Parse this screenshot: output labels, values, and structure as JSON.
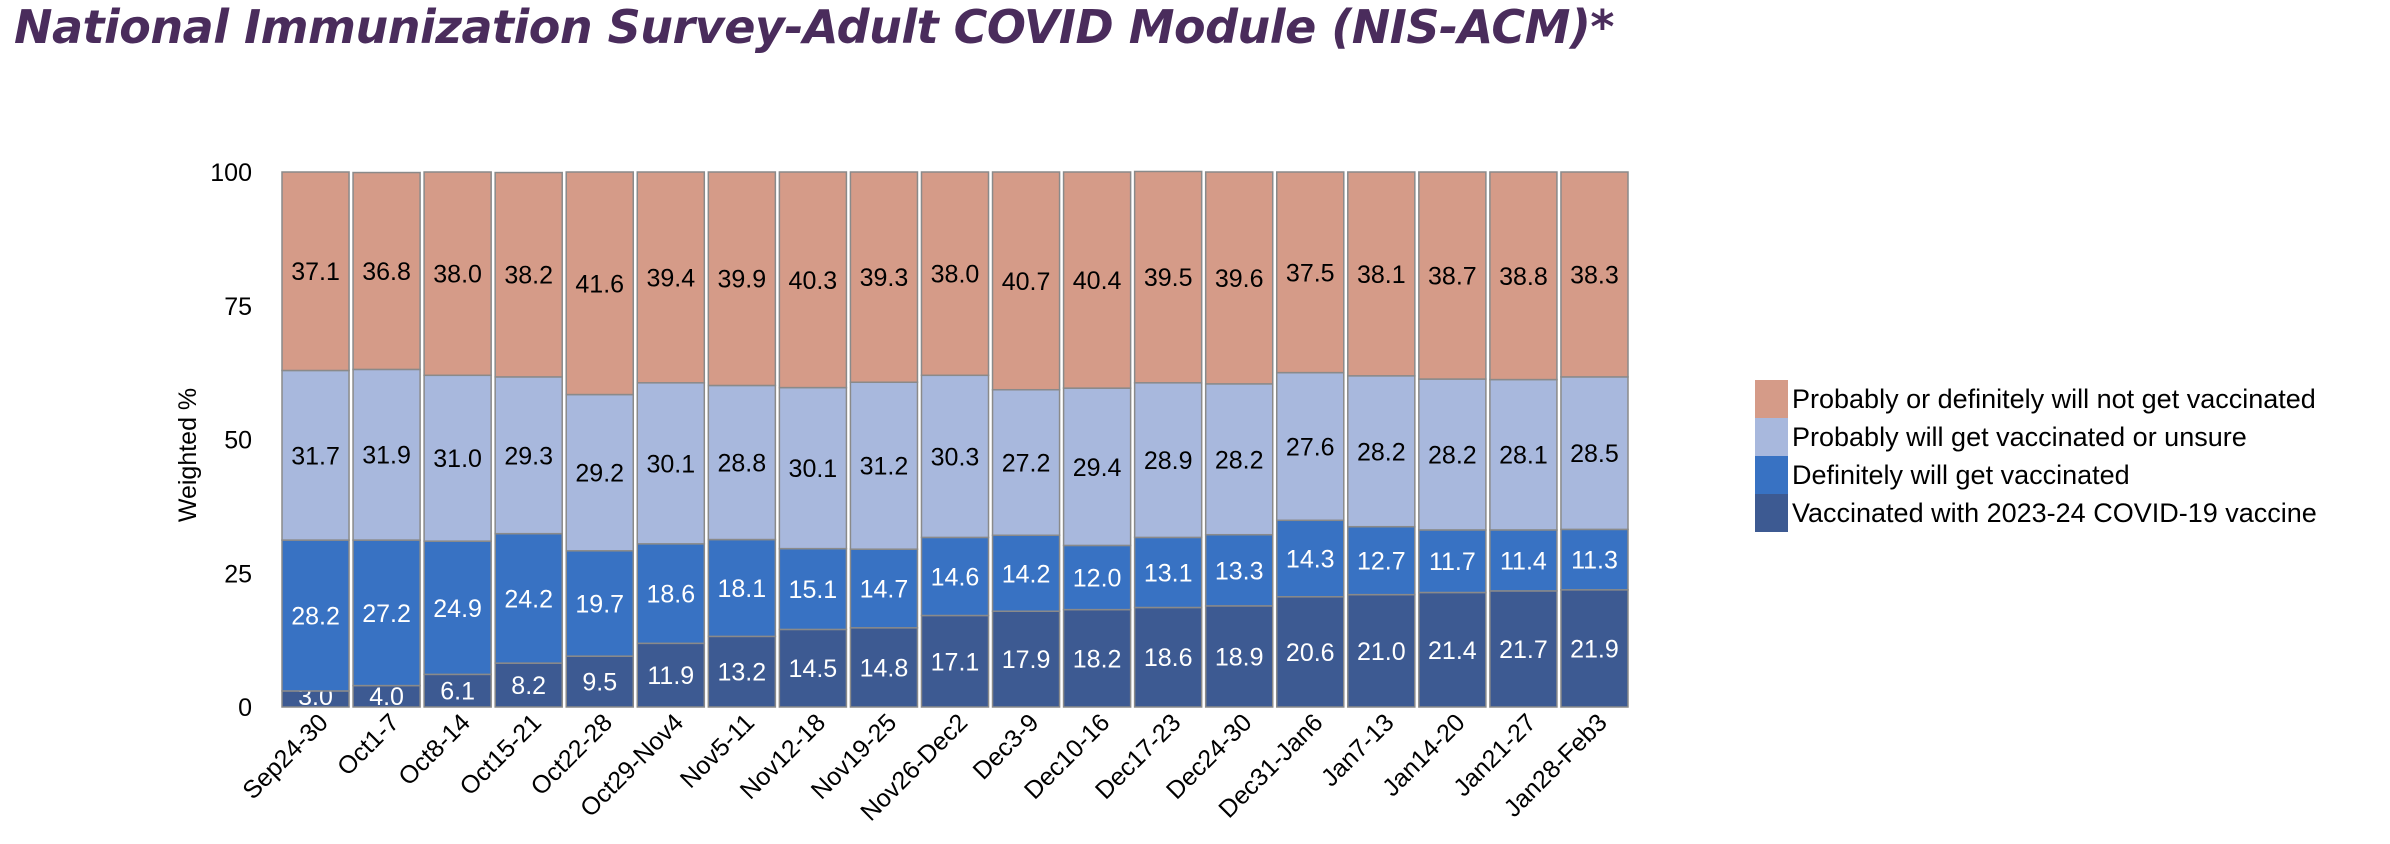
{
  "title": "National Immunization Survey-Adult COVID Module (NIS-ACM)*",
  "colors": {
    "not_vaccinated": "#d59b88",
    "probably_unsure": "#a8b8dd",
    "definitely": "#3872c3",
    "vaccinated": "#3d5a92",
    "bar_border": "#8a8a8a"
  },
  "chart_data": {
    "type": "bar",
    "stacked": true,
    "ylabel": "Weighted %",
    "xlabel": "",
    "ylim": [
      0,
      100
    ],
    "yticks": [
      0,
      25,
      50,
      75,
      100
    ],
    "grid": false,
    "legend_position": "right",
    "categories": [
      "Sep24-30",
      "Oct1-7",
      "Oct8-14",
      "Oct15-21",
      "Oct22-28",
      "Oct29-Nov4",
      "Nov5-11",
      "Nov12-18",
      "Nov19-25",
      "Nov26-Dec2",
      "Dec3-9",
      "Dec10-16",
      "Dec17-23",
      "Dec24-30",
      "Dec31-Jan6",
      "Jan7-13",
      "Jan14-20",
      "Jan21-27",
      "Jan28-Feb3"
    ],
    "series": [
      {
        "name": "Vaccinated with 2023-24 COVID-19 vaccine",
        "color_key": "vaccinated",
        "values": [
          3.0,
          4.0,
          6.1,
          8.2,
          9.5,
          11.9,
          13.2,
          14.5,
          14.8,
          17.1,
          17.9,
          18.2,
          18.6,
          18.9,
          20.6,
          21.0,
          21.4,
          21.7,
          21.9
        ]
      },
      {
        "name": "Definitely will get vaccinated",
        "color_key": "definitely",
        "values": [
          28.2,
          27.2,
          24.9,
          24.2,
          19.7,
          18.6,
          18.1,
          15.1,
          14.7,
          14.6,
          14.2,
          12.0,
          13.1,
          13.3,
          14.3,
          12.7,
          11.7,
          11.4,
          11.3
        ]
      },
      {
        "name": "Probably will get vaccinated or unsure",
        "color_key": "probably_unsure",
        "values": [
          31.7,
          31.9,
          31.0,
          29.3,
          29.2,
          30.1,
          28.8,
          30.1,
          31.2,
          30.3,
          27.2,
          29.4,
          28.9,
          28.2,
          27.6,
          28.2,
          28.2,
          28.1,
          28.5
        ]
      },
      {
        "name": "Probably or definitely will not get vaccinated",
        "color_key": "not_vaccinated",
        "values": [
          37.1,
          36.8,
          38.0,
          38.2,
          41.6,
          39.4,
          39.9,
          40.3,
          39.3,
          38.0,
          40.7,
          40.4,
          39.5,
          39.6,
          37.5,
          38.1,
          38.7,
          38.8,
          38.3
        ]
      }
    ],
    "legend_order": [
      3,
      2,
      1,
      0
    ]
  }
}
